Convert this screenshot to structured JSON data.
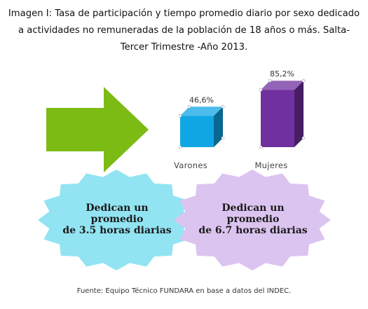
{
  "title": "Imagen I: Tasa de participación y tiempo promedio diario por sexo dedicado a actividades no remuneradas de la población de 18 años o más. Salta- Tercer Trimestre -Año 2013.",
  "chart_data": {
    "type": "bar",
    "categories": [
      "Varones",
      "Mujeres"
    ],
    "values": [
      46.6,
      85.2
    ],
    "value_labels": [
      "46,6%",
      "85,2%"
    ],
    "colors": [
      "#10a6e6",
      "#7030a0"
    ],
    "ylim": [
      0,
      100
    ],
    "grid": false,
    "legend": "none"
  },
  "badges": [
    {
      "line1": "Dedican un",
      "line2": "promedio",
      "line3": "de 3.5 horas diarias",
      "color": "#92e4f2"
    },
    {
      "line1": "Dedican un",
      "line2": "promedio",
      "line3": "de 6.7 horas diarias",
      "color": "#dcc4f0"
    }
  ],
  "arrow_color": "#7cbb14",
  "source": "Fuente: Equipo Técnico FUNDARA en base a datos del INDEC."
}
